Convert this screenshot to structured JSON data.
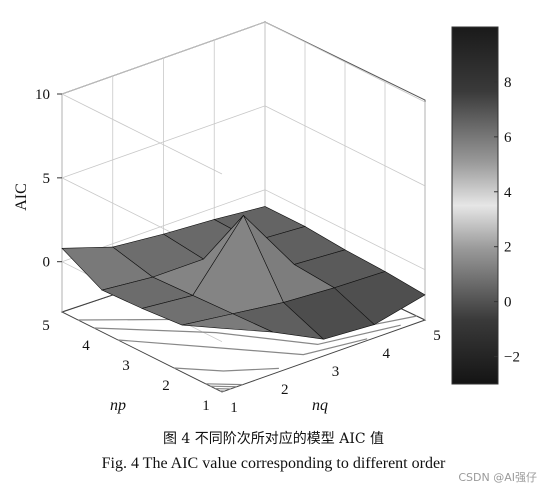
{
  "chart_data": {
    "type": "surface3d",
    "title": "",
    "zlabel": "AIC",
    "xlabel": "nq",
    "ylabel": "np",
    "x_ticks": [
      "1",
      "2",
      "3",
      "4",
      "5"
    ],
    "y_ticks": [
      "1",
      "2",
      "3",
      "4",
      "5"
    ],
    "z_ticks": [
      "0",
      "5",
      "10"
    ],
    "zlim": [
      -3,
      10
    ],
    "np": [
      1,
      2,
      3,
      4,
      5
    ],
    "nq": [
      1,
      2,
      3,
      4,
      5
    ],
    "z": [
      [
        0.8,
        -0.5,
        -2.0,
        -2.2,
        -1.5
      ],
      [
        -0.2,
        -0.6,
        -1.0,
        -1.2,
        -1.3
      ],
      [
        -0.4,
        -0.7,
        3.0,
        -1.0,
        -1.2
      ],
      [
        -0.5,
        -0.8,
        -0.8,
        -0.8,
        -1.0
      ],
      [
        0.8,
        -0.2,
        -0.5,
        -0.7,
        -1.0
      ]
    ],
    "colorbar": {
      "ticks": [
        "8",
        "6",
        "4",
        "2",
        "0",
        "−2"
      ],
      "tick_values": [
        8,
        6,
        4,
        2,
        0,
        -2
      ],
      "range": [
        -3,
        10
      ]
    },
    "grid": true
  },
  "captions": {
    "cn": "图 4   不同阶次所对应的模型 AIC 值",
    "en": "Fig. 4    The AIC value corresponding to different order"
  },
  "watermark": "CSDN @AI强仔"
}
